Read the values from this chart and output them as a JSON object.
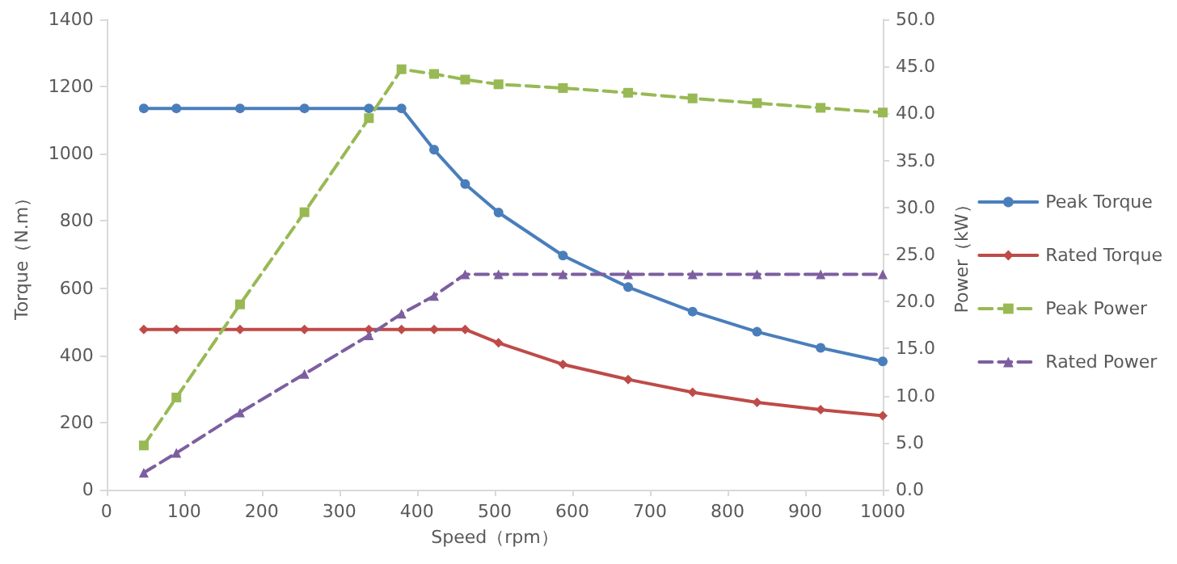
{
  "chart_data": {
    "type": "line",
    "xlabel": "Speed（rpm）",
    "ylabel": "Torque（N.m）",
    "y2label": "Power（kW）",
    "x": [
      48,
      90,
      172,
      255,
      338,
      380,
      422,
      462,
      505,
      588,
      672,
      755,
      838,
      920,
      1000
    ],
    "xlim": [
      0,
      1000
    ],
    "xticks": [
      0,
      100,
      200,
      300,
      400,
      500,
      600,
      700,
      800,
      900,
      1000
    ],
    "ylim": [
      0,
      1400
    ],
    "yticks": [
      0,
      200,
      400,
      600,
      800,
      1000,
      1200,
      1400
    ],
    "y2lim": [
      0,
      50
    ],
    "y2ticks": [
      {
        "value": 0,
        "label": "0.0"
      },
      {
        "value": 5,
        "label": "5.0"
      },
      {
        "value": 10,
        "label": "10.0"
      },
      {
        "value": 15,
        "label": "15.0"
      },
      {
        "value": 20,
        "label": "20.0"
      },
      {
        "value": 25,
        "label": "25.0"
      },
      {
        "value": 30,
        "label": "30.0"
      },
      {
        "value": 35,
        "label": "35.0"
      },
      {
        "value": 40,
        "label": "40.0"
      },
      {
        "value": 45,
        "label": "45.0"
      },
      {
        "value": 50,
        "label": "50.0"
      }
    ],
    "grid": false,
    "legend": "right",
    "series": [
      {
        "name": "Peak Torque",
        "color": "#4a7ebb",
        "marker": "circle",
        "line_style": "solid",
        "values": [
          1135,
          1135,
          1135,
          1135,
          1135,
          1135,
          1012,
          910,
          825,
          697,
          603,
          530,
          470,
          422,
          382
        ]
      },
      {
        "name": "Rated Torque",
        "color": "#be4b48",
        "marker": "diamond",
        "line_style": "solid",
        "values": [
          477,
          477,
          477,
          477,
          477,
          477,
          477,
          477,
          437,
          373,
          328,
          290,
          260,
          238,
          220
        ]
      },
      {
        "name": "Peak Power",
        "color": "#98b954",
        "marker": "square",
        "line_style": "dashed",
        "axis": "y2",
        "values": [
          4.7,
          9.8,
          19.7,
          29.5,
          39.5,
          44.7,
          44.2,
          43.6,
          43.1,
          42.7,
          42.2,
          41.6,
          41.1,
          40.6,
          40.1
        ]
      },
      {
        "name": "Rated Power",
        "color": "#7d5fa0",
        "marker": "triangle",
        "line_style": "dashed",
        "axis": "y2",
        "values": [
          1.8,
          3.9,
          8.2,
          12.3,
          16.4,
          18.7,
          20.6,
          22.9,
          22.9,
          22.9,
          22.9,
          22.9,
          22.9,
          22.9,
          22.9
        ]
      }
    ]
  }
}
